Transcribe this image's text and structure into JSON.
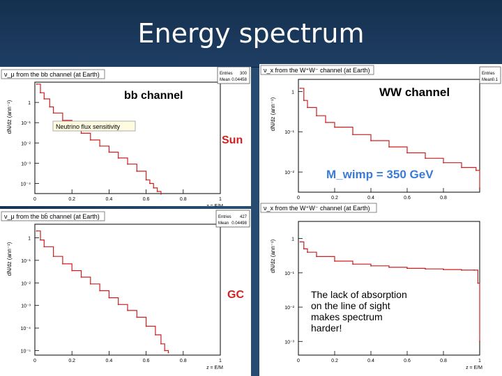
{
  "slide": {
    "title": "Energy spectrum"
  },
  "chart_data": [
    {
      "type": "line",
      "panel": "top-left",
      "header": "ν_μ from the bb channel (at Earth)",
      "stats": {
        "entries_label": "Entries",
        "entries_value": "300",
        "mean_label": "Mean",
        "mean_value": "0.04458"
      },
      "title": "bb channel",
      "annotation_box": "Neutrino flux sensitivity",
      "tag": "Sun",
      "ylabel": "dN/dz (ann⁻¹)",
      "xlabel": "z = E/M",
      "xlim": [
        0,
        1
      ],
      "ylim_log": [
        -4.5,
        1
      ],
      "x_ticks": [
        "0",
        "0.2",
        "0.4",
        "0.6",
        "0.8",
        "1"
      ],
      "y_ticks": [
        {
          "label": "1",
          "exp": 0
        },
        {
          "label": "10⁻¹",
          "exp": -1
        },
        {
          "label": "10⁻²",
          "exp": -2
        },
        {
          "label": "10⁻³",
          "exp": -3
        },
        {
          "label": "10⁻⁴",
          "exp": -4
        }
      ],
      "series": [
        {
          "x": [
            0.01,
            0.03,
            0.05,
            0.08,
            0.1,
            0.15,
            0.2,
            0.25,
            0.3,
            0.35,
            0.4,
            0.45,
            0.5,
            0.55,
            0.6,
            0.62,
            0.64,
            0.66,
            0.68
          ],
          "y": [
            8,
            3,
            1.5,
            0.6,
            0.3,
            0.13,
            0.06,
            0.03,
            0.014,
            0.007,
            0.0035,
            0.0018,
            0.0009,
            0.0004,
            0.00015,
            0.0001,
            6e-05,
            4e-05,
            3e-05
          ]
        }
      ]
    },
    {
      "type": "line",
      "panel": "top-right",
      "header": "ν_x from the W⁺W⁻ channel (at Earth)",
      "stats": {
        "entries_label": "Entries",
        "entries_value": "",
        "mean_label": "Mean",
        "mean_value": "0.1"
      },
      "title": "WW channel",
      "annotation": "M_wimp = 350 GeV",
      "ylabel": "dN/dz (ann⁻¹)",
      "xlabel": "",
      "xlim": [
        0,
        1
      ],
      "ylim_log": [
        -2.5,
        0.3
      ],
      "x_ticks": [
        "0",
        "0.2",
        "0.4",
        "0.6",
        "0.8"
      ],
      "y_ticks": [
        {
          "label": "1",
          "exp": 0
        },
        {
          "label": "10⁻¹",
          "exp": -1
        },
        {
          "label": "10⁻²",
          "exp": -2
        }
      ],
      "series": [
        {
          "x": [
            0.01,
            0.03,
            0.05,
            0.1,
            0.15,
            0.2,
            0.3,
            0.4,
            0.5,
            0.6,
            0.7,
            0.8,
            0.9,
            0.98,
            1.0
          ],
          "y": [
            1.2,
            0.6,
            0.4,
            0.25,
            0.17,
            0.13,
            0.085,
            0.06,
            0.042,
            0.03,
            0.022,
            0.017,
            0.013,
            0.011,
            0.004
          ]
        }
      ]
    },
    {
      "type": "line",
      "panel": "bottom-left",
      "header": "ν_μ from the bb̄ channel (at Earth)",
      "stats": {
        "entries_label": "Entries",
        "entries_value": "427",
        "mean_label": "Mean",
        "mean_value": "0.04498"
      },
      "tag": "GC",
      "ylabel": "dN/dz (ann⁻¹)",
      "xlabel": "z = E/M",
      "xlim": [
        0,
        1
      ],
      "ylim_log": [
        -5.2,
        0.6
      ],
      "x_ticks": [
        "0",
        "0.2",
        "0.4",
        "0.6",
        "0.8",
        "1"
      ],
      "y_ticks": [
        {
          "label": "1",
          "exp": 0
        },
        {
          "label": "10⁻¹",
          "exp": -1
        },
        {
          "label": "10⁻²",
          "exp": -2
        },
        {
          "label": "10⁻³",
          "exp": -3
        },
        {
          "label": "10⁻⁴",
          "exp": -4
        },
        {
          "label": "10⁻⁵",
          "exp": -5
        }
      ],
      "series": [
        {
          "x": [
            0.01,
            0.03,
            0.05,
            0.1,
            0.15,
            0.2,
            0.25,
            0.3,
            0.35,
            0.4,
            0.45,
            0.5,
            0.55,
            0.6,
            0.65,
            0.68,
            0.7,
            0.72
          ],
          "y": [
            2,
            0.8,
            0.4,
            0.15,
            0.07,
            0.035,
            0.018,
            0.009,
            0.0045,
            0.0022,
            0.0011,
            0.0006,
            0.0003,
            0.00012,
            5e-05,
            2e-05,
            1e-05,
            8e-06
          ]
        }
      ]
    },
    {
      "type": "line",
      "panel": "bottom-right",
      "header": "ν_x from the W⁺W⁻ channel (at Earth)",
      "ylabel": "dN/dz (ann⁻¹)",
      "xlabel": "z = E/M",
      "xlim": [
        0,
        1
      ],
      "ylim_log": [
        -3.4,
        0.5
      ],
      "annotation": [
        "The lack of absorption",
        "on the line of sight",
        "makes spectrum",
        "harder!"
      ],
      "x_ticks": [
        "0",
        "0.2",
        "0.4",
        "0.6",
        "0.8",
        "1"
      ],
      "y_ticks": [
        {
          "label": "1",
          "exp": 0
        },
        {
          "label": "10⁻¹",
          "exp": -1
        },
        {
          "label": "10⁻²",
          "exp": -2
        },
        {
          "label": "10⁻³",
          "exp": -3
        }
      ],
      "series": [
        {
          "x": [
            0.01,
            0.03,
            0.05,
            0.1,
            0.2,
            0.3,
            0.4,
            0.5,
            0.6,
            0.7,
            0.8,
            0.9,
            0.97,
            0.99,
            1.0
          ],
          "y": [
            0.8,
            0.5,
            0.4,
            0.3,
            0.22,
            0.18,
            0.16,
            0.145,
            0.135,
            0.13,
            0.125,
            0.12,
            0.12,
            0.05,
            0.001
          ]
        }
      ]
    }
  ]
}
